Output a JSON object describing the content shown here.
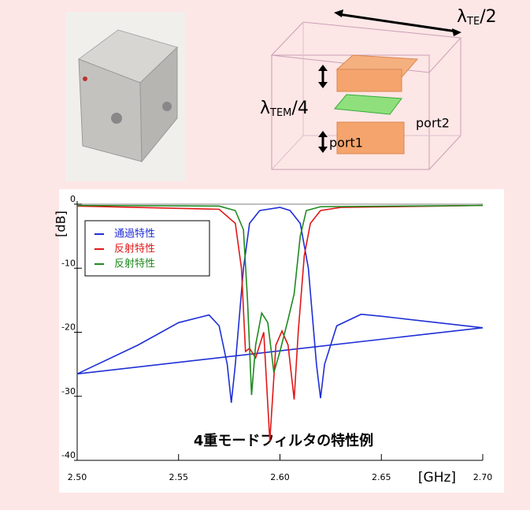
{
  "chart_data": {
    "type": "line",
    "title": "4重モードフィルタの特性例",
    "y_label": "[dB]",
    "x_label": "[GHz]",
    "xlim": [
      2.5,
      2.7
    ],
    "xticks": [
      {
        "value": 2.5,
        "label": "2.50"
      },
      {
        "value": 2.55,
        "label": "2.55"
      },
      {
        "value": 2.6,
        "label": "2.60"
      },
      {
        "value": 2.65,
        "label": "2.65"
      },
      {
        "value": 2.7,
        "label": "2.70"
      }
    ],
    "ylim": [
      -40,
      0
    ],
    "yticks": [
      0,
      -10,
      -20,
      -30,
      -40
    ],
    "series": [
      {
        "name": "通過特性",
        "color": "#1f2fd6",
        "x": [
          2.5,
          2.53,
          2.55,
          2.565,
          2.57,
          2.574,
          2.576,
          2.578,
          2.582,
          2.585,
          2.59,
          2.6,
          2.605,
          2.61,
          2.614,
          2.618,
          2.62,
          2.622,
          2.628,
          2.64,
          2.65,
          2.7,
          2.5
        ],
        "values": [
          -26.5,
          -22,
          -18.5,
          -17.3,
          -19,
          -25,
          -31,
          -25,
          -10,
          -3,
          -1,
          -0.5,
          -1,
          -3,
          -10,
          -25,
          -30.3,
          -25,
          -19,
          -17.2,
          -17.5,
          -19.3,
          -26.5
        ]
      },
      {
        "name": "反射特性",
        "color": "#e01818",
        "x": [
          2.5,
          2.57,
          2.578,
          2.581,
          2.583,
          2.585,
          2.588,
          2.592,
          2.595,
          2.598,
          2.601,
          2.604,
          2.607,
          2.609,
          2.612,
          2.615,
          2.62,
          2.63,
          2.7
        ],
        "values": [
          -0.3,
          -0.8,
          -3,
          -10,
          -23,
          -22.5,
          -24,
          -20,
          -37,
          -22,
          -19.8,
          -22,
          -30.5,
          -20,
          -8,
          -3,
          -1,
          -0.5,
          -0.2
        ]
      },
      {
        "name": "反射特性",
        "color": "#1e8a1e",
        "x": [
          2.5,
          2.57,
          2.578,
          2.582,
          2.584,
          2.586,
          2.588,
          2.591,
          2.594,
          2.597,
          2.6,
          2.604,
          2.607,
          2.61,
          2.613,
          2.62,
          2.7
        ],
        "values": [
          -0.2,
          -0.3,
          -1,
          -4,
          -15,
          -29.8,
          -22,
          -17,
          -18.5,
          -26.3,
          -23,
          -18,
          -14,
          -5,
          -1,
          -0.4,
          -0.2
        ]
      }
    ]
  },
  "figure_labels": {
    "lambda_te": {
      "base": "λ",
      "sub": "TE",
      "tail": "/2"
    },
    "lambda_tem": {
      "base": "λ",
      "sub": "TEM",
      "tail": "/4"
    },
    "port1": "port1",
    "port2": "port2"
  }
}
